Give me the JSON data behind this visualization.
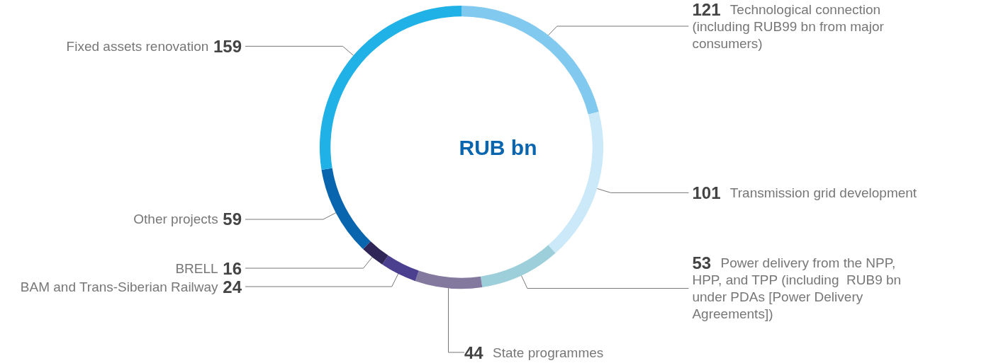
{
  "chart_data": {
    "type": "donut",
    "title": "RUB bn",
    "categories": [
      "Technological connection (including RUB99 bn from major consumers)",
      "Transmission grid development",
      "Power delivery from the NPP, HPP, and TPP (including  RUB9 bn under PDAs [Power Delivery Agreements])",
      "State programmes",
      "BAM and Trans-Siberian Railway",
      "BRELL",
      "Other projects",
      "Fixed assets renovation"
    ],
    "values": [
      121,
      101,
      53,
      44,
      24,
      16,
      59,
      159
    ],
    "colors": [
      "#82c9ef",
      "#cbe9f8",
      "#9dcfda",
      "#83799e",
      "#4b3f8f",
      "#2f2557",
      "#0a65af",
      "#20b2e7"
    ],
    "data_labels": true
  }
}
